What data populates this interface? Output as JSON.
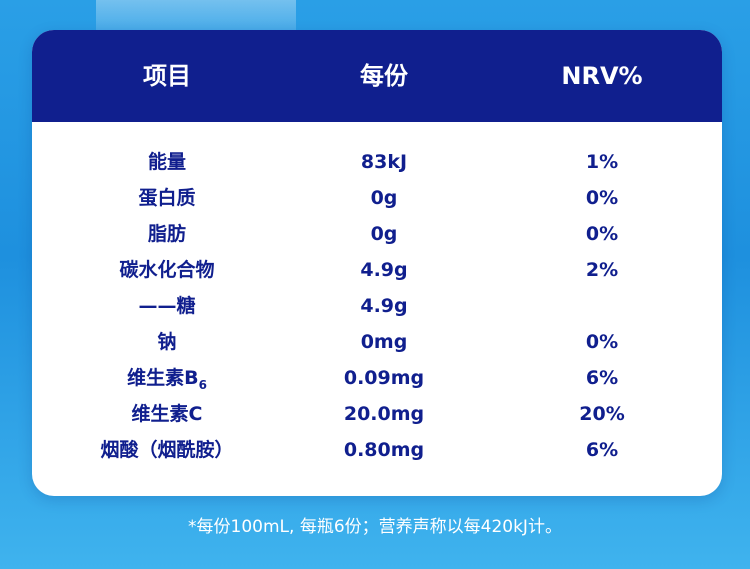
{
  "table": {
    "headers": {
      "item": "项目",
      "per_serving": "每份",
      "nrv": "NRV%"
    },
    "rows": [
      {
        "item": "能量",
        "item_sub": "",
        "per_serving": "83kJ",
        "nrv": "1%"
      },
      {
        "item": "蛋白质",
        "item_sub": "",
        "per_serving": "0g",
        "nrv": "0%"
      },
      {
        "item": "脂肪",
        "item_sub": "",
        "per_serving": "0g",
        "nrv": "0%"
      },
      {
        "item": "碳水化合物",
        "item_sub": "",
        "per_serving": "4.9g",
        "nrv": "2%"
      },
      {
        "item": "——糖",
        "item_sub": "",
        "per_serving": "4.9g",
        "nrv": ""
      },
      {
        "item": "钠",
        "item_sub": "",
        "per_serving": "0mg",
        "nrv": "0%"
      },
      {
        "item": "维生素B",
        "item_sub": "6",
        "per_serving": "0.09mg",
        "nrv": "6%"
      },
      {
        "item": "维生素C",
        "item_sub": "",
        "per_serving": "20.0mg",
        "nrv": "20%"
      },
      {
        "item": "烟酸（烟酰胺）",
        "item_sub": "",
        "per_serving": "0.80mg",
        "nrv": "6%"
      }
    ]
  },
  "footnote": "*每份100mL, 每瓶6份；营养声称以每420kJ计。",
  "colors": {
    "header_bg": "#101f8e",
    "text": "#101f8e",
    "background": "#2a9fe6"
  }
}
